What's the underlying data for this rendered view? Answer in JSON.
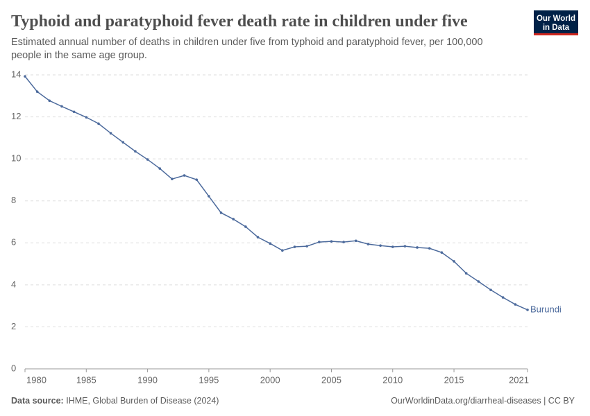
{
  "header": {
    "title": "Typhoid and paratyphoid fever death rate in children under five",
    "subtitle_lines": [
      "Estimated annual number of deaths in children under five from typhoid and paratyphoid fever, per 100,000",
      "people in the same age group."
    ],
    "logo_lines": [
      "Our World",
      "in Data"
    ]
  },
  "chart_data": {
    "type": "line",
    "x": [
      1980,
      1981,
      1982,
      1983,
      1984,
      1985,
      1986,
      1987,
      1988,
      1989,
      1990,
      1991,
      1992,
      1993,
      1994,
      1995,
      1996,
      1997,
      1998,
      1999,
      2000,
      2001,
      2002,
      2003,
      2004,
      2005,
      2006,
      2007,
      2008,
      2009,
      2010,
      2011,
      2012,
      2013,
      2014,
      2015,
      2016,
      2017,
      2018,
      2019,
      2020,
      2021
    ],
    "series": [
      {
        "name": "Burundi",
        "color": "#4c6a9c",
        "values": [
          13.93,
          13.2,
          12.77,
          12.5,
          12.24,
          11.98,
          11.68,
          11.22,
          10.79,
          10.36,
          9.97,
          9.54,
          9.04,
          9.21,
          9.01,
          8.22,
          7.43,
          7.13,
          6.77,
          6.27,
          5.97,
          5.64,
          5.81,
          5.84,
          6.04,
          6.07,
          6.04,
          6.1,
          5.94,
          5.87,
          5.81,
          5.84,
          5.78,
          5.74,
          5.54,
          5.12,
          4.55,
          4.16,
          3.76,
          3.4,
          3.07,
          2.81
        ]
      }
    ],
    "xlim": [
      1980,
      2021
    ],
    "xticks": [
      1980,
      1985,
      1990,
      1995,
      2000,
      2005,
      2010,
      2015,
      2021
    ],
    "ylim": [
      0,
      14
    ],
    "yticks": [
      0,
      2,
      4,
      6,
      8,
      10,
      12,
      14
    ],
    "grid": true
  },
  "footer": {
    "source_label": "Data source:",
    "source": "IHME, Global Burden of Disease (2024)",
    "url": "OurWorldinData.org/diarrheal-diseases | CC BY"
  }
}
